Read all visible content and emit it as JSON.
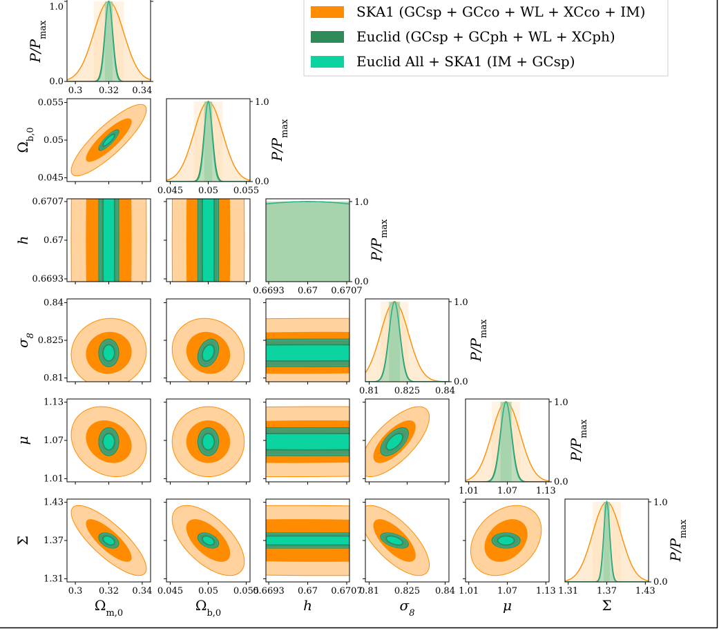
{
  "chart_data": {
    "type": "triangle",
    "title": "",
    "params": [
      {
        "name": "Ωm,0",
        "symbol": "Ω",
        "sub": "m,0",
        "mean": 0.32,
        "range": [
          0.295,
          0.345
        ],
        "ticks": [
          {
            "v": 0.3,
            "t": "0.3"
          },
          {
            "v": 0.32,
            "t": "0.32"
          },
          {
            "v": 0.34,
            "t": "0.34"
          }
        ],
        "ylabel_ticks": []
      },
      {
        "name": "Ωb,0",
        "symbol": "Ω",
        "sub": "b,0",
        "mean": 0.05,
        "range": [
          0.0445,
          0.0555
        ],
        "ticks": [
          {
            "v": 0.045,
            "t": "0.045"
          },
          {
            "v": 0.05,
            "t": "0.05"
          },
          {
            "v": 0.055,
            "t": "0.055"
          }
        ]
      },
      {
        "name": "h",
        "symbol": "h",
        "sub": "",
        "mean": 0.67,
        "range": [
          0.66925,
          0.67075
        ],
        "ticks": [
          {
            "v": 0.6693,
            "t": "0.6693"
          },
          {
            "v": 0.67,
            "t": "0.67"
          },
          {
            "v": 0.6707,
            "t": "0.6707"
          }
        ]
      },
      {
        "name": "σ8",
        "symbol": "σ",
        "sub": "8",
        "mean": 0.82,
        "range": [
          0.8085,
          0.8415
        ],
        "ticks": [
          {
            "v": 0.81,
            "t": "0.81"
          },
          {
            "v": 0.825,
            "t": "0.825"
          },
          {
            "v": 0.84,
            "t": "0.84"
          }
        ]
      },
      {
        "name": "μ",
        "symbol": "μ",
        "sub": "",
        "mean": 1.068,
        "range": [
          1.005,
          1.135
        ],
        "ticks": [
          {
            "v": 1.01,
            "t": "1.01"
          },
          {
            "v": 1.07,
            "t": "1.07"
          },
          {
            "v": 1.13,
            "t": "1.13"
          }
        ]
      },
      {
        "name": "Σ",
        "symbol": "Σ",
        "sub": "",
        "mean": 1.37,
        "range": [
          1.305,
          1.435
        ],
        "ticks": [
          {
            "v": 1.31,
            "t": "1.31"
          },
          {
            "v": 1.37,
            "t": "1.37"
          },
          {
            "v": 1.43,
            "t": "1.43"
          }
        ]
      }
    ],
    "marginal_ylabel": "P/Pmax",
    "marginal_ticks": [
      {
        "v": 0.0,
        "t": "0.0"
      },
      {
        "v": 1.0,
        "t": "1.0"
      }
    ],
    "sigmas": {
      "SKA1": [
        0.009,
        0.0019,
        0.003,
        0.0055,
        0.022,
        0.022
      ],
      "Euclid": [
        0.0024,
        0.00055,
        0.003,
        0.0022,
        0.0088,
        0.0048
      ],
      "Combined": [
        0.0022,
        0.0005,
        0.003,
        0.0021,
        0.0083,
        0.0045
      ]
    },
    "correlations": {
      "SKA1": {
        "1-0": 0.85,
        "2-0": 0.0,
        "2-1": 0.0,
        "3-0": 0.05,
        "3-1": -0.1,
        "3-2": 0.05,
        "4-0": -0.2,
        "4-1": 0.0,
        "4-2": 0.05,
        "4-3": 0.7,
        "5-0": -0.8,
        "5-1": -0.6,
        "5-2": -0.05,
        "5-3": -0.7,
        "5-4": 0.3
      },
      "Euclid": {
        "1-0": 0.85,
        "2-0": 0.0,
        "2-1": 0.0,
        "3-0": 0.0,
        "3-1": 0.3,
        "3-2": 0.05,
        "4-0": 0.0,
        "4-1": 0.0,
        "4-2": 0.0,
        "4-3": 0.6,
        "5-0": -0.4,
        "5-1": -0.4,
        "5-2": 0.0,
        "5-3": -0.5,
        "5-4": 0.0
      },
      "Combined": {
        "1-0": 0.85,
        "2-0": 0.0,
        "2-1": 0.0,
        "3-0": 0.0,
        "3-1": 0.3,
        "3-2": 0.05,
        "4-0": 0.0,
        "4-1": 0.0,
        "4-2": 0.0,
        "4-3": 0.6,
        "5-0": -0.4,
        "5-1": -0.4,
        "5-2": 0.0,
        "5-3": -0.5,
        "5-4": 0.0
      }
    },
    "series": [
      {
        "name": "SKA1",
        "label": "SKA1 (GCsp + GCco + WL + XCco + IM)",
        "color_outer": "#ffd29e",
        "color_inner": "#ff8c00",
        "edge": "#ff8c00"
      },
      {
        "name": "Euclid",
        "label": "Euclid (GCsp + GCph + WL + XCph)",
        "color_outer": "#4c9a6c",
        "color_inner": "#2e8b57",
        "edge": "#2e8b57"
      },
      {
        "name": "Combined",
        "label": "Euclid All  +  SKA1 (IM + GCsp)",
        "color_outer": "#0cd4a0",
        "color_inner": "#0cd4a0",
        "edge": "#2ab08a"
      }
    ],
    "legend_position": "top-right"
  },
  "legend": {
    "items": [
      {
        "label": "SKA1 (GCsp + GCco + WL + XCco + IM)",
        "color": "#ff8c00"
      },
      {
        "label": "Euclid (GCsp + GCph + WL + XCph)",
        "color": "#2e8b57"
      },
      {
        "label": "Euclid All  +  SKA1 (IM + GCsp)",
        "color": "#0cd4a0"
      }
    ]
  }
}
